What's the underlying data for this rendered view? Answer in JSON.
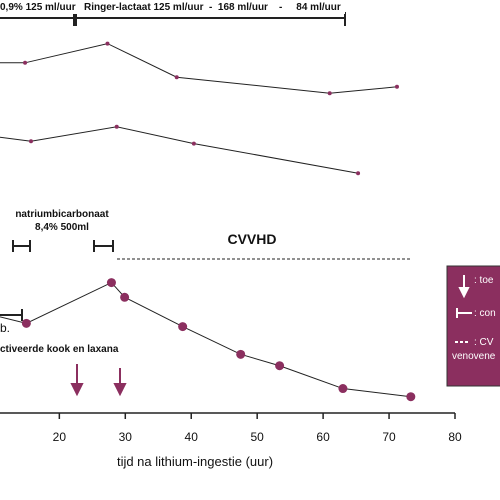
{
  "chart_data": {
    "type": "line",
    "x_label": "tijd na lithium-ingestie (uur)",
    "xlim": [
      11,
      80
    ],
    "xticks": [
      20,
      30,
      40,
      50,
      60,
      70,
      80
    ],
    "ylim": [
      0,
      100
    ],
    "series": [
      {
        "color": "#8b2f5f",
        "x": [
          11,
          14.8,
          27.3,
          37.8,
          61.0,
          71.2
        ],
        "values": [
          59,
          59,
          83,
          41,
          21,
          29
        ]
      },
      {
        "color": "#8b2f5f",
        "x": [
          11,
          15.7,
          28.7,
          40.4,
          65.3
        ],
        "values": [
          66,
          61,
          79,
          58,
          21
        ]
      },
      {
        "color": "#8b2f5f",
        "x": [
          11,
          15.0,
          27.9,
          29.9,
          38.7,
          47.5,
          53.4,
          63.0,
          73.3
        ],
        "values": [
          59,
          55,
          80,
          71,
          53,
          36,
          29,
          15,
          10
        ]
      }
    ],
    "annotations": {
      "infusion_a": "0,9% 125 ml/uur",
      "infusion_b": "Ringer-lactaat 125 ml/uur  -  168 ml/uur    -     84 ml/uur",
      "bicarbonate_1": "natriumbicarbonaat",
      "bicarbonate_2": "8,4% 500ml",
      "cvvhd": "CVVHD",
      "b_label": "b.",
      "charcoal": "ctiveerde kook en laxana",
      "legend_1": ": toe",
      "legend_2": ": con",
      "legend_3": ": CV",
      "legend_4": "venovene"
    }
  }
}
